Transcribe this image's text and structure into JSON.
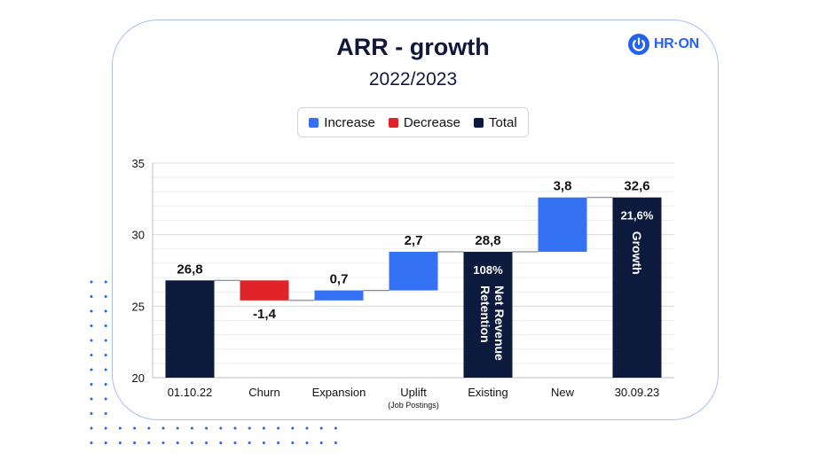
{
  "brand": {
    "logo_text": "HR·ON",
    "accent_color": "#2563eb"
  },
  "header": {
    "title": "ARR - growth",
    "subtitle": "2022/2023"
  },
  "legend": {
    "items": [
      {
        "label": "Increase",
        "color": "#3471f5",
        "icon": "square"
      },
      {
        "label": "Decrease",
        "color": "#e0242a",
        "icon": "square"
      },
      {
        "label": "Total",
        "color": "#0c1a3d",
        "icon": "square"
      }
    ]
  },
  "chart_data": {
    "type": "bar",
    "variant": "waterfall",
    "title": "ARR - growth",
    "subtitle": "2022/2023",
    "ylim": [
      20,
      35
    ],
    "y_ticks": [
      20,
      25,
      30,
      35
    ],
    "grid": true,
    "legend_position": "top-center",
    "categories": [
      "01.10.22",
      "Churn",
      "Expansion",
      "Uplift",
      "Existing",
      "New",
      "30.09.23"
    ],
    "category_sublabels": [
      "",
      "",
      "",
      "(Job Postings)",
      "",
      "",
      ""
    ],
    "steps": [
      {
        "category": "01.10.22",
        "kind": "total",
        "start": 20,
        "end": 26.8,
        "label": "26,8"
      },
      {
        "category": "Churn",
        "kind": "decrease",
        "start": 26.8,
        "end": 25.4,
        "label": "-1,4"
      },
      {
        "category": "Expansion",
        "kind": "increase",
        "start": 25.4,
        "end": 26.1,
        "label": "0,7"
      },
      {
        "category": "Uplift",
        "kind": "increase",
        "start": 26.1,
        "end": 28.8,
        "label": "2,7"
      },
      {
        "category": "Existing",
        "kind": "total",
        "start": 20,
        "end": 28.8,
        "label": "28,8",
        "inner_value": "108%",
        "inner_text": "Net Revenue Retention"
      },
      {
        "category": "New",
        "kind": "increase",
        "start": 28.8,
        "end": 32.6,
        "label": "3,8"
      },
      {
        "category": "30.09.23",
        "kind": "total",
        "start": 20,
        "end": 32.6,
        "label": "32,6",
        "inner_value": "21,6%",
        "inner_text": "Growth"
      }
    ],
    "colors": {
      "increase": "#3471f5",
      "decrease": "#e0242a",
      "total": "#0c1a3d"
    }
  }
}
